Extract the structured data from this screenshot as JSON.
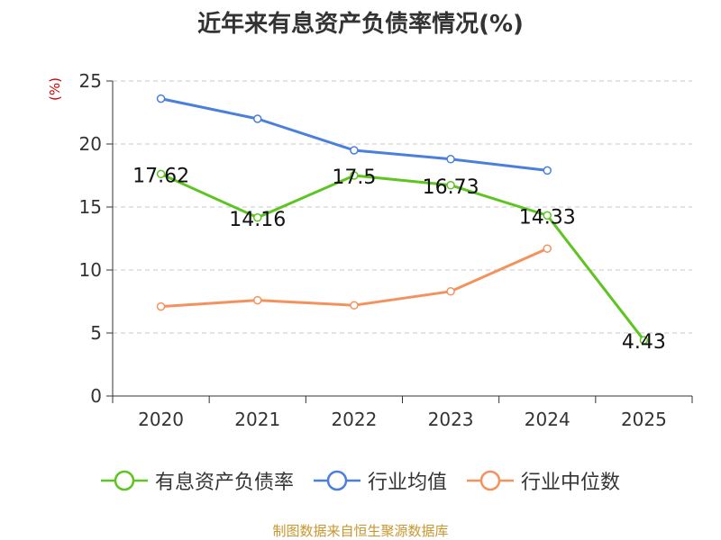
{
  "chart_data": {
    "type": "line",
    "title": "近年来有息资产负债率情况(%)",
    "ylabel": "(%)",
    "categories": [
      "2020",
      "2021",
      "2022",
      "2023",
      "2024",
      "2025"
    ],
    "ylim": [
      0,
      25
    ],
    "yticks": [
      "0",
      "5",
      "10",
      "15",
      "20",
      "25"
    ],
    "grid": true,
    "legend_position": "bottom",
    "series": [
      {
        "name": "有息资产负债率",
        "color": "#5ec422",
        "values": [
          17.62,
          14.16,
          17.5,
          16.73,
          14.33,
          4.43
        ],
        "labels": [
          "17.62",
          "14.16",
          "17.5",
          "16.73",
          "14.33",
          "4.43"
        ]
      },
      {
        "name": "行业均值",
        "color": "#4a7fdb",
        "values": [
          23.6,
          22.0,
          19.5,
          18.8,
          17.9,
          null
        ]
      },
      {
        "name": "行业中位数",
        "color": "#f3925d",
        "values": [
          7.1,
          7.6,
          7.2,
          8.3,
          11.7,
          null
        ]
      }
    ]
  },
  "source": "制图数据来自恒生聚源数据库"
}
